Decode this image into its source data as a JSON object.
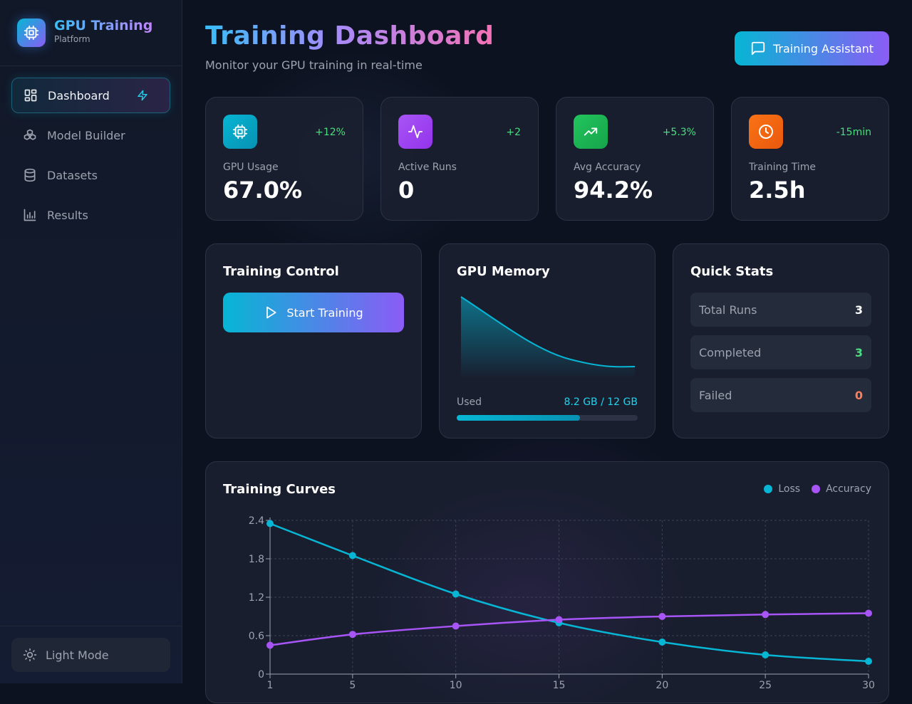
{
  "brand": {
    "title": "GPU Training",
    "subtitle": "Platform"
  },
  "sidebar": {
    "items": [
      {
        "label": "Dashboard",
        "icon": "layout-grid-icon",
        "active": true
      },
      {
        "label": "Model Builder",
        "icon": "boxes-icon"
      },
      {
        "label": "Datasets",
        "icon": "database-icon"
      },
      {
        "label": "Results",
        "icon": "bar-chart-icon"
      }
    ],
    "footer_label": "Light Mode"
  },
  "header": {
    "title": "Training Dashboard",
    "subtitle": "Monitor your GPU training in real-time",
    "assistant_label": "Training Assistant"
  },
  "stats": [
    {
      "label": "GPU Usage",
      "value": "67.0%",
      "delta": "+12%",
      "icon": "cpu-icon",
      "color": "#06b6d4"
    },
    {
      "label": "Active Runs",
      "value": "0",
      "delta": "+2",
      "icon": "activity-icon",
      "color": "#a855f7"
    },
    {
      "label": "Avg Accuracy",
      "value": "94.2%",
      "delta": "+5.3%",
      "icon": "trending-up-icon",
      "color": "#22c55e"
    },
    {
      "label": "Training Time",
      "value": "2.5h",
      "delta": "-15min",
      "icon": "clock-icon",
      "color": "#f97316"
    }
  ],
  "training_control": {
    "title": "Training Control",
    "start_label": "Start Training"
  },
  "gpu_memory": {
    "title": "GPU Memory",
    "used_label": "Used",
    "used_value": "8.2 GB / 12 GB",
    "used_fraction": 0.683
  },
  "quick_stats": {
    "title": "Quick Stats",
    "rows": [
      {
        "label": "Total Runs",
        "value": "3",
        "color": "#ffffff"
      },
      {
        "label": "Completed",
        "value": "3",
        "color": "#4ade80"
      },
      {
        "label": "Failed",
        "value": "0",
        "color": "#fb7d5b"
      }
    ]
  },
  "curves": {
    "title": "Training Curves",
    "legend": [
      {
        "name": "Loss",
        "color": "#06b6d4"
      },
      {
        "name": "Accuracy",
        "color": "#a855f7"
      }
    ]
  },
  "chart_data": {
    "type": "line",
    "x": [
      1,
      5,
      10,
      15,
      20,
      25,
      30
    ],
    "x_ticks": [
      "1",
      "5",
      "10",
      "15",
      "20",
      "25",
      "30"
    ],
    "y_ticks": [
      "0",
      "0.6",
      "1.2",
      "1.8",
      "2.4"
    ],
    "ylim": [
      0,
      2.4
    ],
    "grid": true,
    "legend_position": "top-right",
    "series": [
      {
        "name": "Loss",
        "color": "#06b6d4",
        "values": [
          2.35,
          1.85,
          1.25,
          0.8,
          0.5,
          0.3,
          0.2
        ]
      },
      {
        "name": "Accuracy",
        "color": "#a855f7",
        "values": [
          0.45,
          0.62,
          0.75,
          0.85,
          0.9,
          0.93,
          0.95
        ]
      }
    ]
  }
}
